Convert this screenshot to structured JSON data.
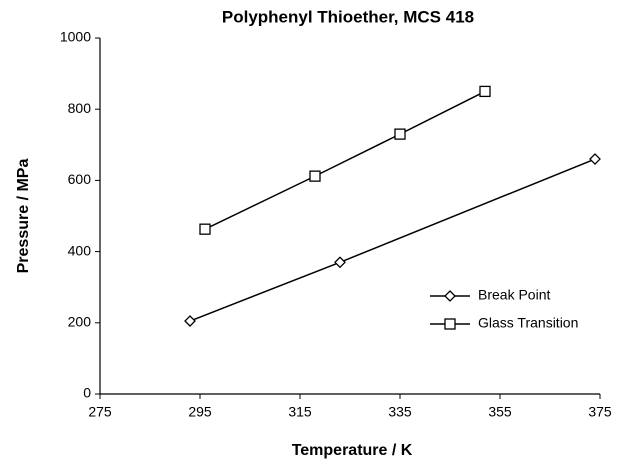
{
  "chart_data": {
    "type": "line",
    "title": "Polyphenyl Thioether, MCS 418",
    "x_label": "Temperature / K",
    "y_label": "Pressure / MPa",
    "xlim": [
      275,
      375
    ],
    "xticks": [
      275,
      295,
      315,
      335,
      355,
      375
    ],
    "ylim": [
      0,
      1000
    ],
    "yticks": [
      0,
      200,
      400,
      600,
      800,
      1000
    ],
    "grid": false,
    "legend": "right",
    "series": [
      {
        "name": "Break Point",
        "color": "#000000",
        "marker": "diamond",
        "x": [
          293,
          323,
          374
        ],
        "values": [
          205,
          370,
          660
        ]
      },
      {
        "name": "Glass Transition",
        "color": "#000000",
        "marker": "square",
        "x": [
          296,
          318,
          335,
          352
        ],
        "values": [
          463,
          612,
          730,
          850
        ]
      }
    ]
  }
}
